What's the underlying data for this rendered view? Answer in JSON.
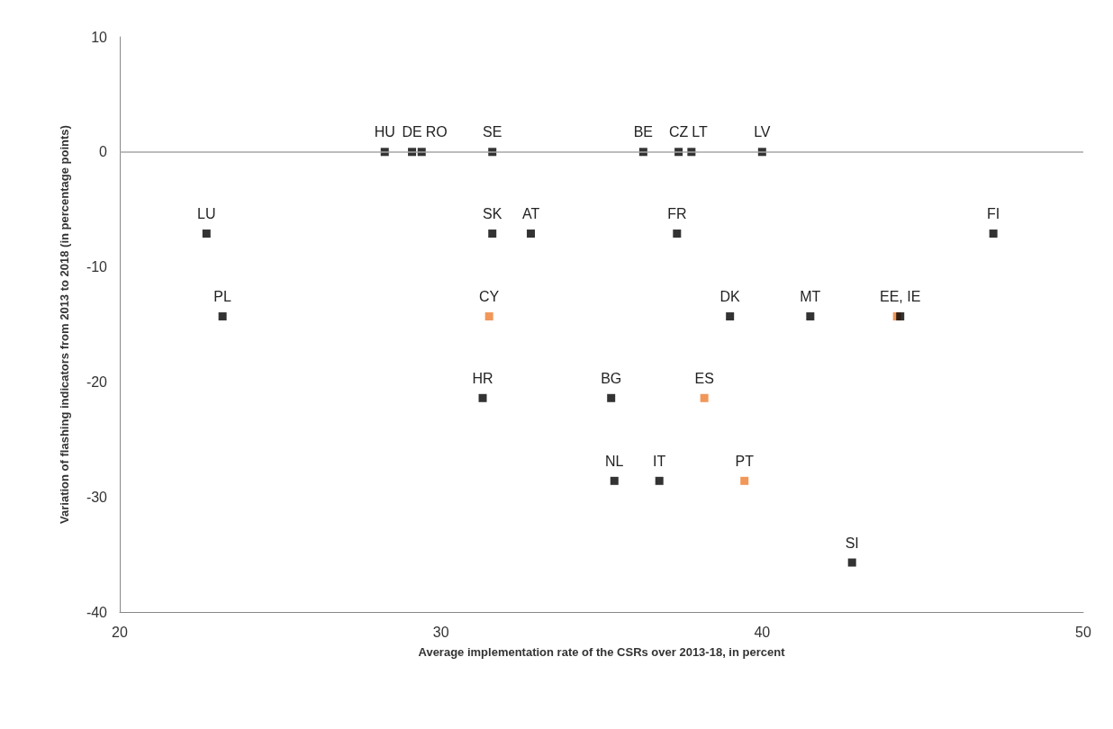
{
  "chart_data": {
    "type": "scatter",
    "xlabel": "Average implementation rate of the CSRs over 2013-18, in percent",
    "ylabel": "Variation of flashing indicators from 2013 to 2018 (in percentage points)",
    "series": [
      {
        "x": [
          28.25,
          29.1,
          29.4,
          31.6,
          36.3,
          37.4,
          37.8,
          40.0,
          22.7,
          31.6,
          32.8,
          37.35,
          47.2,
          23.2,
          31.5,
          39.0,
          41.5,
          44.2,
          44.3,
          31.3,
          35.3,
          38.2,
          35.4,
          36.8,
          39.45,
          42.8
        ],
        "values": [
          0,
          0,
          0,
          0,
          0,
          0,
          0,
          0,
          -7.1,
          -7.1,
          -7.1,
          -7.1,
          -7.1,
          -14.3,
          -14.3,
          -14.3,
          -14.3,
          -14.3,
          -14.3,
          -21.4,
          -21.4,
          -21.4,
          -28.6,
          -28.6,
          -28.6,
          -35.7
        ],
        "colors": [
          "#000000",
          "#000000",
          "#000000",
          "#000000",
          "#000000",
          "#000000",
          "#000000",
          "#000000",
          "#000000",
          "#000000",
          "#000000",
          "#000000",
          "#000000",
          "#000000",
          "#ed7d31",
          "#000000",
          "#000000",
          "#ed7d31",
          "#000000",
          "#000000",
          "#000000",
          "#ed7d31",
          "#000000",
          "#000000",
          "#ed7d31",
          "#000000"
        ]
      }
    ],
    "annotations": [
      {
        "text": "HU",
        "x": 28.25,
        "y": 0
      },
      {
        "text": "DE",
        "x": 29.1,
        "y": 0
      },
      {
        "text": "RO",
        "x": 29.4,
        "y": 0
      },
      {
        "text": "SE",
        "x": 31.6,
        "y": 0
      },
      {
        "text": "BE",
        "x": 36.3,
        "y": 0
      },
      {
        "text": "CZ",
        "x": 37.4,
        "y": 0
      },
      {
        "text": "LT",
        "x": 37.8,
        "y": 0
      },
      {
        "text": "LV",
        "x": 40.0,
        "y": 0
      },
      {
        "text": "LU",
        "x": 22.7,
        "y": -7.1
      },
      {
        "text": "SK",
        "x": 31.6,
        "y": -7.1
      },
      {
        "text": "AT",
        "x": 32.8,
        "y": -7.1
      },
      {
        "text": "FR",
        "x": 37.35,
        "y": -7.1
      },
      {
        "text": "FI",
        "x": 47.2,
        "y": -7.1
      },
      {
        "text": "PL",
        "x": 23.2,
        "y": -14.3
      },
      {
        "text": "CY",
        "x": 31.5,
        "y": -14.3
      },
      {
        "text": "DK",
        "x": 39.0,
        "y": -14.3
      },
      {
        "text": "MT",
        "x": 41.5,
        "y": -14.3
      },
      {
        "text": "EE, IE",
        "x": 44.3,
        "y": -14.3
      },
      {
        "text": "HR",
        "x": 31.3,
        "y": -21.4
      },
      {
        "text": "BG",
        "x": 35.3,
        "y": -21.4
      },
      {
        "text": "ES",
        "x": 38.2,
        "y": -21.4
      },
      {
        "text": "NL",
        "x": 35.4,
        "y": -28.6
      },
      {
        "text": "IT",
        "x": 36.8,
        "y": -28.6
      },
      {
        "text": "PT",
        "x": 39.45,
        "y": -28.6
      },
      {
        "text": "SI",
        "x": 42.8,
        "y": -35.7
      }
    ],
    "xlim": [
      20,
      50
    ],
    "xticks": [
      20,
      30,
      40,
      50
    ],
    "ylim": [
      -40,
      10
    ],
    "yticks": [
      -40,
      -30,
      -20,
      -10,
      0,
      10
    ],
    "ref_lines": [
      {
        "axis": "y",
        "value": 0,
        "color": "#a6a6a6"
      }
    ],
    "marker": "square",
    "grid": false
  }
}
